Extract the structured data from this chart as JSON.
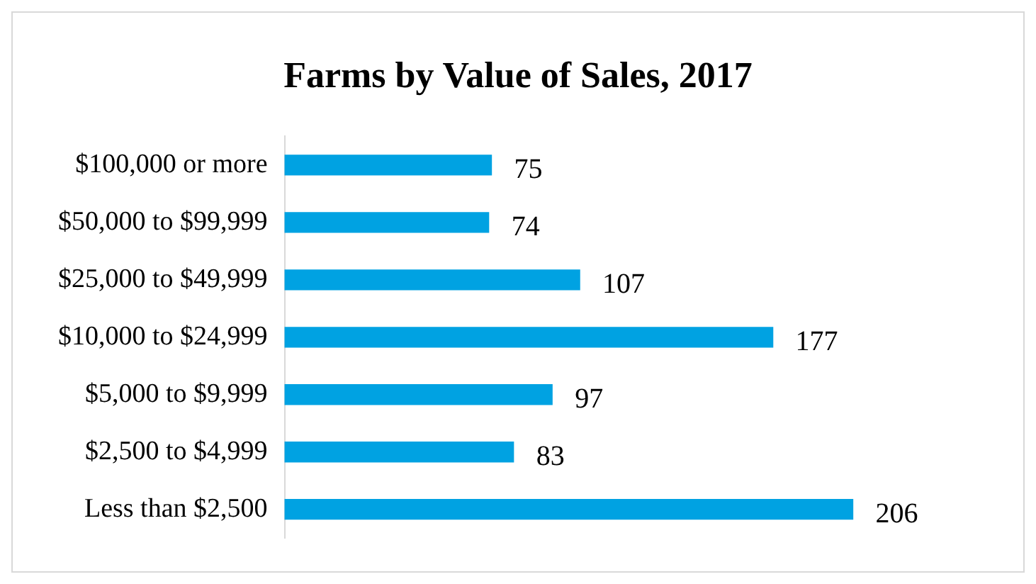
{
  "chart_data": {
    "type": "bar",
    "orientation": "horizontal",
    "title": "Farms by Value of Sales, 2017",
    "categories": [
      "$100,000 or more",
      "$50,000 to $99,999",
      "$25,000 to $49,999",
      "$10,000 to $24,999",
      "$5,000 to $9,999",
      "$2,500 to $4,999",
      "Less than $2,500"
    ],
    "values": [
      75,
      74,
      107,
      177,
      97,
      83,
      206
    ],
    "color": "#00a2e2",
    "data_labels": true
  }
}
